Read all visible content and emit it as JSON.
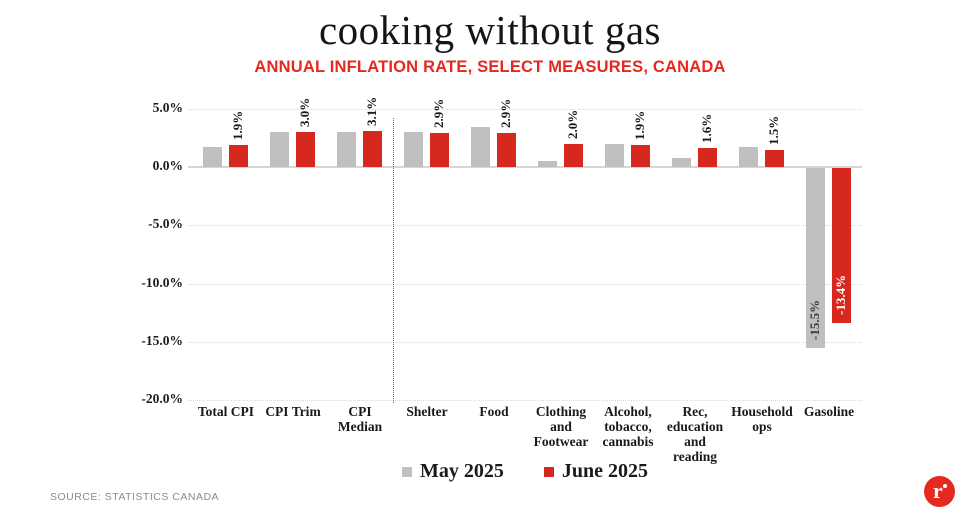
{
  "header": {
    "title": "cooking without gas",
    "subtitle": "ANNUAL INFLATION RATE, SELECT MEASURES, CANADA"
  },
  "chart_data": {
    "type": "bar",
    "title": "cooking without gas",
    "subtitle": "ANNUAL INFLATION RATE, SELECT MEASURES, CANADA",
    "categories": [
      "Total CPI",
      "CPI Trim",
      "CPI Median",
      "Shelter",
      "Food",
      "Clothing and Footwear",
      "Alcohol, tobacco, cannabis",
      "Rec, education and reading",
      "Household ops",
      "Gasoline"
    ],
    "category_display": [
      "Total CPI",
      "CPI Trim",
      "CPI\nMedian",
      "Shelter",
      "Food",
      "Clothing\nand\nFootwear",
      "Alcohol,\ntobacco,\ncannabis",
      "Rec,\neducation\nand\nreading",
      "Household\nops",
      "Gasoline"
    ],
    "series": [
      {
        "name": "May 2025",
        "color": "#bfbfbf",
        "values": [
          1.7,
          3.0,
          3.0,
          3.0,
          3.4,
          0.5,
          2.0,
          0.8,
          1.7,
          -15.5
        ]
      },
      {
        "name": "June 2025",
        "color": "#d6281e",
        "values": [
          1.9,
          3.0,
          3.1,
          2.9,
          2.9,
          2.0,
          1.9,
          1.6,
          1.5,
          -13.4
        ]
      }
    ],
    "bar_labels": [
      {
        "ci": 0,
        "series": 1,
        "text": "1.9%",
        "placement": "above"
      },
      {
        "ci": 1,
        "series": 1,
        "text": "3.0%",
        "placement": "above"
      },
      {
        "ci": 2,
        "series": 1,
        "text": "3.1%",
        "placement": "above"
      },
      {
        "ci": 3,
        "series": 1,
        "text": "2.9%",
        "placement": "above"
      },
      {
        "ci": 4,
        "series": 1,
        "text": "2.9%",
        "placement": "above"
      },
      {
        "ci": 5,
        "series": 1,
        "text": "2.0%",
        "placement": "above"
      },
      {
        "ci": 6,
        "series": 1,
        "text": "1.9%",
        "placement": "above"
      },
      {
        "ci": 7,
        "series": 1,
        "text": "1.6%",
        "placement": "above"
      },
      {
        "ci": 8,
        "series": 1,
        "text": "1.5%",
        "placement": "above"
      },
      {
        "ci": 9,
        "series": 0,
        "text": "-15.5%",
        "placement": "inside",
        "color": "#3d3d3d"
      },
      {
        "ci": 9,
        "series": 1,
        "text": "-13.4%",
        "placement": "inside",
        "color": "#ffffff"
      }
    ],
    "y_ticks": [
      {
        "label": "5.0%",
        "value": 5
      },
      {
        "label": "0.0%",
        "value": 0
      },
      {
        "label": "-5.0%",
        "value": -5
      },
      {
        "label": "-10.0%",
        "value": -10
      },
      {
        "label": "-15.0%",
        "value": -15
      },
      {
        "label": "-20.0%",
        "value": -20
      }
    ],
    "ylim": [
      -20,
      5
    ],
    "grid": "dotted horizontal gridlines, solid zero line",
    "separator_after_category_index": 2,
    "legend_position": "bottom-center"
  },
  "legend": {
    "items": [
      {
        "label": "May 2025",
        "color": "#bfbfbf"
      },
      {
        "label": "June 2025",
        "color": "#d6281e"
      }
    ]
  },
  "footer": {
    "source": "SOURCE: STATISTICS CANADA",
    "logo_letter": "r"
  },
  "colors": {
    "may_gray": "#bfbfbf",
    "june_red": "#d6281e",
    "accent_red": "#e5291e",
    "text_dark": "#1a1a1a",
    "grid_gray": "#dadada",
    "source_gray": "#8c8c8c"
  }
}
